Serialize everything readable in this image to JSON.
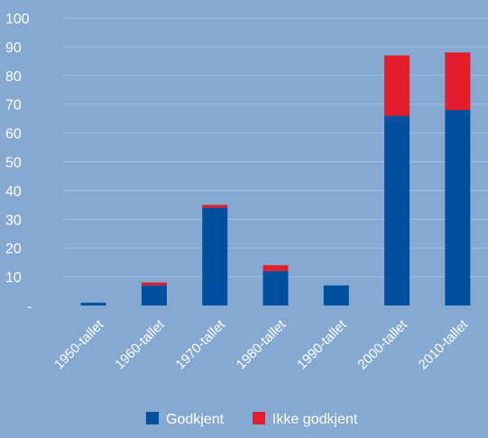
{
  "chart_data": {
    "type": "bar",
    "stacked": true,
    "categories": [
      "1950-tallet",
      "1960-tallet",
      "1970-tallet",
      "1980-tallet",
      "1990-tallet",
      "2000-tallet",
      "2010-tallet"
    ],
    "series": [
      {
        "name": "Godkjent",
        "color": "#0050a0",
        "values": [
          1,
          7,
          34,
          12,
          7,
          66,
          68
        ]
      },
      {
        "name": "Ikke godkjent",
        "color": "#e31e2c",
        "values": [
          0,
          1,
          1,
          2,
          0,
          21,
          20
        ]
      }
    ],
    "ylim": [
      0,
      100
    ],
    "yticks": [
      {
        "value": 0,
        "label": "-"
      },
      {
        "value": 10,
        "label": "10"
      },
      {
        "value": 20,
        "label": "20"
      },
      {
        "value": 30,
        "label": "30"
      },
      {
        "value": 40,
        "label": "40"
      },
      {
        "value": 50,
        "label": "50"
      },
      {
        "value": 60,
        "label": "60"
      },
      {
        "value": 70,
        "label": "70"
      },
      {
        "value": 80,
        "label": "80"
      },
      {
        "value": 90,
        "label": "90"
      },
      {
        "value": 100,
        "label": "100"
      }
    ],
    "grid": true,
    "legend_position": "bottom",
    "background": "#85a9d1"
  }
}
